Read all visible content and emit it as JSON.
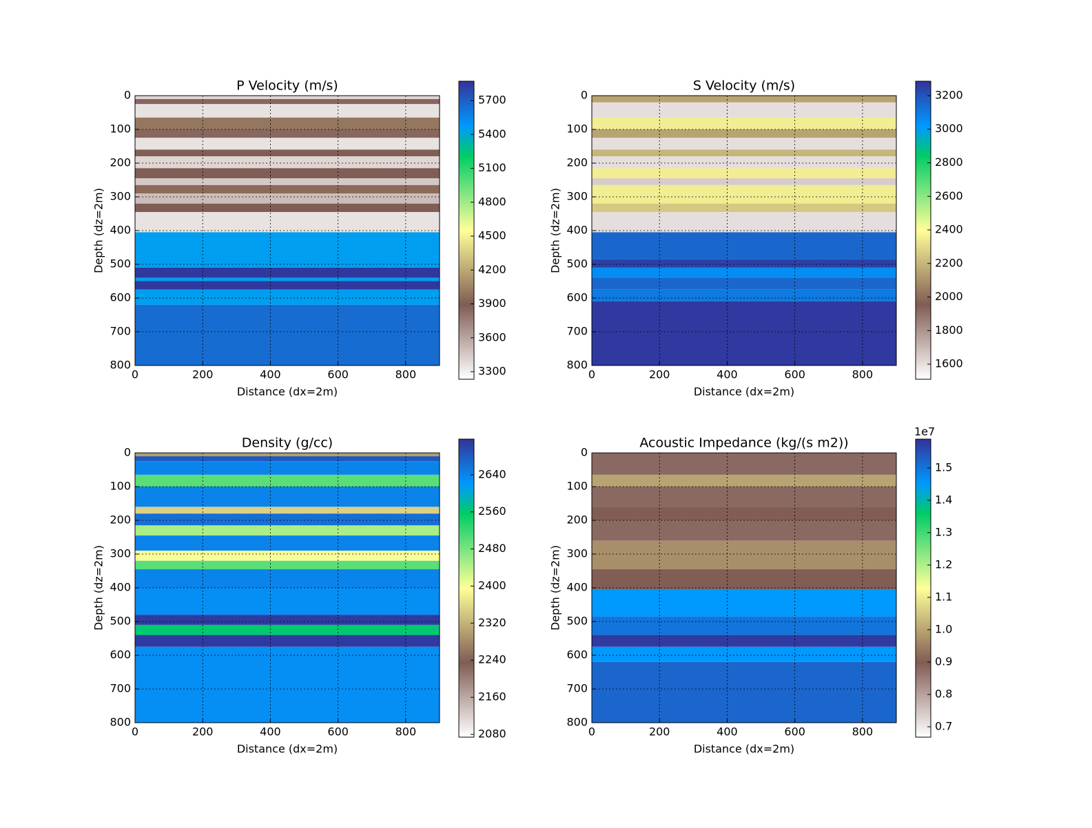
{
  "chart_data": [
    {
      "type": "heatmap",
      "title": "P Velocity (m/s)",
      "x_label": "Distance (dx=2m)",
      "y_label": "Depth (dz=2m)",
      "xlim": [
        0,
        900
      ],
      "xticks": [
        0,
        200,
        400,
        600,
        800
      ],
      "ylim": [
        800,
        0
      ],
      "yticks": [
        0,
        100,
        200,
        300,
        400,
        500,
        600,
        700,
        800
      ],
      "grid": true,
      "colormap": "terrain_r",
      "depths": [
        0,
        10,
        25,
        65,
        100,
        125,
        160,
        180,
        215,
        245,
        265,
        290,
        320,
        345,
        405,
        510,
        540,
        550,
        575,
        620,
        800
      ],
      "values": [
        3400,
        3850,
        3350,
        4000,
        3850,
        3350,
        3900,
        3400,
        3900,
        3450,
        3950,
        3500,
        3900,
        3350,
        5450,
        5850,
        5450,
        5850,
        5450,
        5650
      ],
      "clim": [
        3233,
        5871
      ],
      "cticks": [
        3300,
        3600,
        3900,
        4200,
        4500,
        4800,
        5100,
        5400,
        5700
      ]
    },
    {
      "type": "heatmap",
      "title": "S Velocity (m/s)",
      "x_label": "Distance (dx=2m)",
      "y_label": "Depth (dz=2m)",
      "xlim": [
        0,
        900
      ],
      "xticks": [
        0,
        200,
        400,
        600,
        800
      ],
      "ylim": [
        800,
        0
      ],
      "yticks": [
        0,
        100,
        200,
        300,
        400,
        500,
        600,
        700,
        800
      ],
      "grid": true,
      "colormap": "terrain_r",
      "depths": [
        0,
        20,
        65,
        100,
        125,
        160,
        180,
        215,
        245,
        265,
        320,
        345,
        405,
        485,
        510,
        540,
        575,
        610,
        800
      ],
      "values": [
        2150,
        1600,
        2350,
        2150,
        1600,
        2200,
        1600,
        2350,
        1650,
        2350,
        2250,
        1600,
        3150,
        3250,
        3050,
        3150,
        3100,
        3270
      ],
      "clim": [
        1510,
        3286
      ],
      "cticks": [
        1600,
        1800,
        2000,
        2200,
        2400,
        2600,
        2800,
        3000,
        3200
      ]
    },
    {
      "type": "heatmap",
      "title": "Density (g/cc)",
      "x_label": "Distance (dx=2m)",
      "y_label": "Depth (dz=2m)",
      "xlim": [
        0,
        900
      ],
      "xticks": [
        0,
        200,
        400,
        600,
        800
      ],
      "ylim": [
        800,
        0
      ],
      "yticks": [
        0,
        100,
        200,
        300,
        400,
        500,
        600,
        700,
        800
      ],
      "grid": true,
      "colormap": "terrain_r",
      "depths": [
        0,
        10,
        25,
        65,
        100,
        160,
        180,
        215,
        245,
        290,
        320,
        345,
        400,
        480,
        510,
        540,
        575,
        800
      ],
      "values": [
        2300,
        2680,
        2640,
        2500,
        2640,
        2350,
        2660,
        2450,
        2640,
        2400,
        2500,
        2640,
        2630,
        2710,
        2560,
        2710,
        2630
      ],
      "clim": [
        2074,
        2717
      ],
      "cticks": [
        2080,
        2160,
        2240,
        2320,
        2400,
        2480,
        2560,
        2640
      ]
    },
    {
      "type": "heatmap",
      "title": "Acoustic Impedance (kg/(s m2))",
      "x_label": "Distance (dx=2m)",
      "y_label": "Depth (dz=2m)",
      "xlim": [
        0,
        900
      ],
      "xticks": [
        0,
        200,
        400,
        600,
        800
      ],
      "ylim": [
        800,
        0
      ],
      "yticks": [
        0,
        100,
        200,
        300,
        400,
        500,
        600,
        700,
        800
      ],
      "grid": true,
      "colormap": "terrain_r",
      "depths": [
        0,
        65,
        100,
        160,
        200,
        260,
        345,
        405,
        485,
        540,
        575,
        620,
        800
      ],
      "values": [
        0.88,
        1.0,
        0.88,
        0.9,
        0.88,
        0.97,
        0.9,
        1.45,
        1.5,
        1.58,
        1.45,
        1.52
      ],
      "clim": [
        0.668,
        1.589
      ],
      "cticks": [
        0.7,
        0.8,
        0.9,
        {
          "value": 1,
          "label": "1.0"
        },
        1.1,
        1.2,
        1.3,
        1.4,
        1.5
      ],
      "coffset": "1e7"
    }
  ]
}
